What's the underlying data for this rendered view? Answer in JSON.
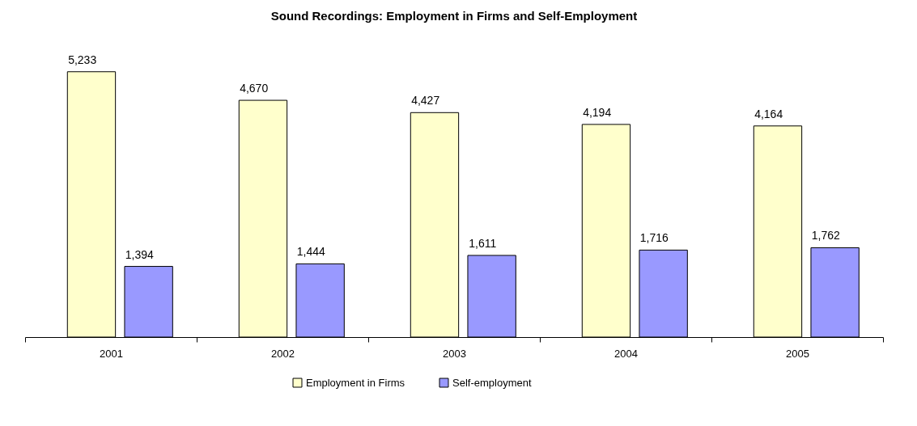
{
  "chart_data": {
    "type": "bar",
    "title": "Sound Recordings:  Employment in Firms and Self-Employment",
    "categories": [
      "2001",
      "2002",
      "2003",
      "2004",
      "2005"
    ],
    "series": [
      {
        "name": "Employment in Firms",
        "color": "#ffffcc",
        "values": [
          5233,
          4670,
          4427,
          4194,
          4164
        ],
        "value_labels": [
          "5,233",
          "4,670",
          "4,427",
          "4,194",
          "4,164"
        ]
      },
      {
        "name": "Self-employment",
        "color": "#9999ff",
        "values": [
          1394,
          1444,
          1611,
          1716,
          1762
        ],
        "value_labels": [
          "1,394",
          "1,444",
          "1,611",
          "1,716",
          "1,762"
        ]
      }
    ],
    "legend": "bottom"
  }
}
